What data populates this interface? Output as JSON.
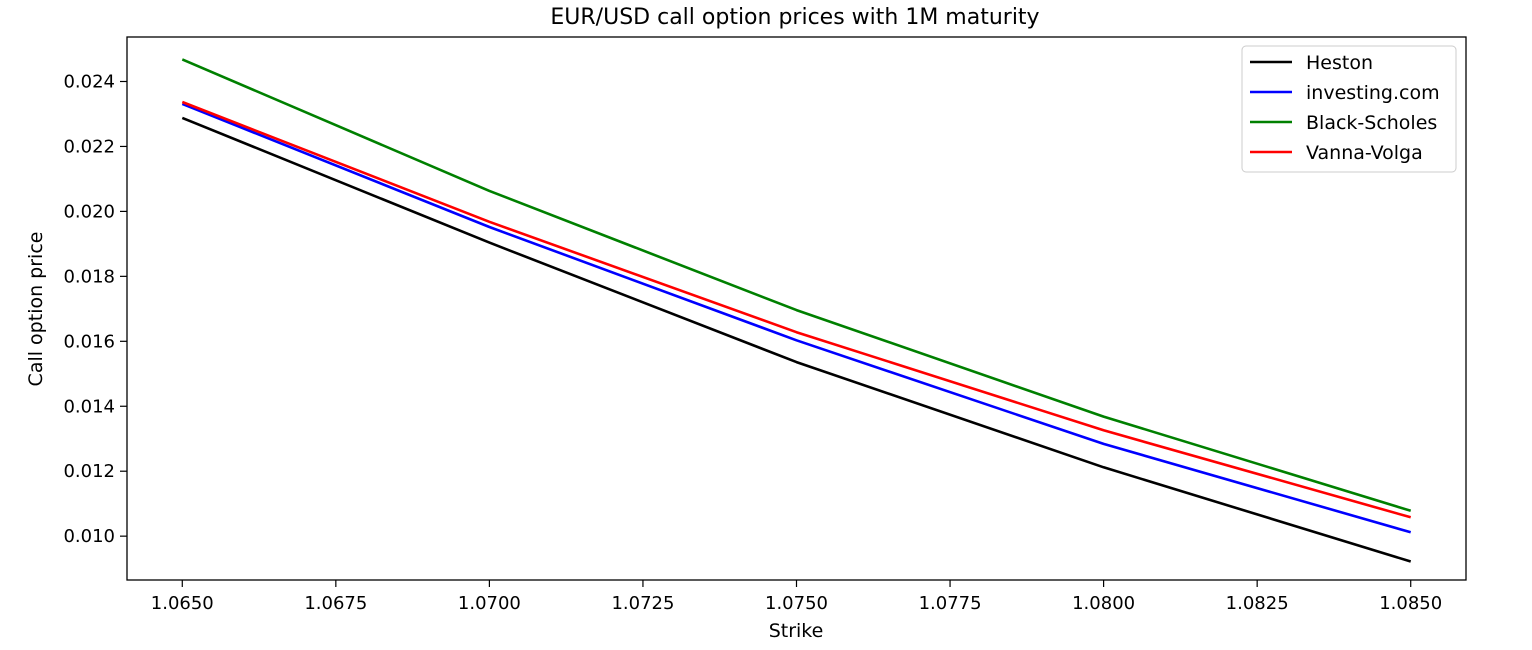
{
  "chart_data": {
    "type": "line",
    "title": "EUR/USD call option prices with 1M maturity",
    "xlabel": "Strike",
    "ylabel": "Call option price",
    "x": [
      1.065,
      1.07,
      1.075,
      1.08,
      1.085
    ],
    "xlim": [
      1.0641,
      1.0859
    ],
    "ylim": [
      0.00865,
      0.02537
    ],
    "xticks": [
      1.065,
      1.0675,
      1.07,
      1.0725,
      1.075,
      1.0775,
      1.08,
      1.0825,
      1.085
    ],
    "xtick_labels": [
      "1.0650",
      "1.0675",
      "1.0700",
      "1.0725",
      "1.0750",
      "1.0775",
      "1.0800",
      "1.0825",
      "1.0850"
    ],
    "yticks": [
      0.01,
      0.012,
      0.014,
      0.016,
      0.018,
      0.02,
      0.022,
      0.024
    ],
    "ytick_labels": [
      "0.010",
      "0.012",
      "0.014",
      "0.016",
      "0.018",
      "0.020",
      "0.022",
      "0.024"
    ],
    "grid": false,
    "legend_position": "top-right",
    "series": [
      {
        "name": "Heston",
        "color": "#000000",
        "values": [
          0.02288,
          0.01904,
          0.01536,
          0.01212,
          0.00922
        ]
      },
      {
        "name": "investing.com",
        "color": "#0000ff",
        "values": [
          0.02331,
          0.01952,
          0.01603,
          0.01284,
          0.01012
        ]
      },
      {
        "name": "Black-Scholes",
        "color": "#008000",
        "values": [
          0.02468,
          0.02063,
          0.01696,
          0.01368,
          0.01078
        ]
      },
      {
        "name": "Vanna-Volga",
        "color": "#ff0000",
        "values": [
          0.02337,
          0.01968,
          0.01628,
          0.01326,
          0.01058
        ]
      }
    ]
  }
}
